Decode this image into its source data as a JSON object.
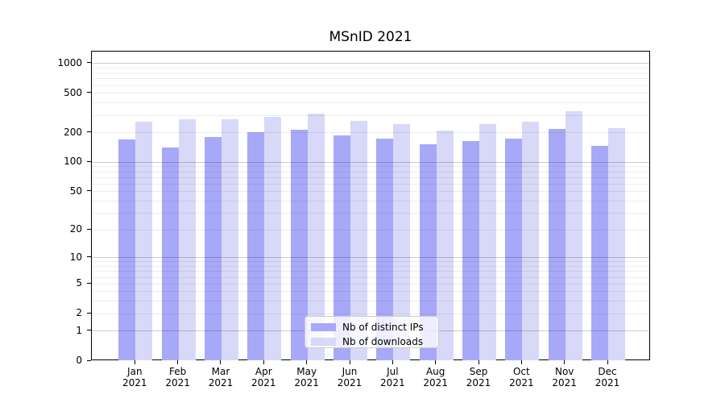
{
  "title": "MSnID 2021",
  "legend": {
    "items": [
      {
        "label": "Nb of distinct IPs",
        "color": "#a8a8f8"
      },
      {
        "label": "Nb of downloads",
        "color": "#d8d8f8"
      }
    ]
  },
  "chart_data": {
    "type": "bar",
    "title": "MSnID 2021",
    "categories": [
      "Jan 2021",
      "Feb 2021",
      "Mar 2021",
      "Apr 2021",
      "May 2021",
      "Jun 2021",
      "Jul 2021",
      "Aug 2021",
      "Sep 2021",
      "Oct 2021",
      "Nov 2021",
      "Dec 2021"
    ],
    "months": [
      "Jan",
      "Feb",
      "Mar",
      "Apr",
      "May",
      "Jun",
      "Jul",
      "Aug",
      "Sep",
      "Oct",
      "Nov",
      "Dec"
    ],
    "year": "2021",
    "series": [
      {
        "name": "Nb of distinct IPs",
        "color": "#a8a8f8",
        "values": [
          172,
          141,
          181,
          201,
          214,
          187,
          175,
          153,
          165,
          174,
          217,
          148
        ]
      },
      {
        "name": "Nb of downloads",
        "color": "#d8d8f8",
        "values": [
          257,
          273,
          274,
          291,
          310,
          265,
          245,
          210,
          245,
          258,
          328,
          224
        ]
      }
    ],
    "xlabel": "",
    "ylabel": "",
    "yscale": "log10(value+1)",
    "y_tick_values": [
      0,
      1,
      2,
      5,
      10,
      20,
      50,
      100,
      200,
      500,
      1000
    ],
    "y_tick_labels": [
      "0",
      "1",
      "2",
      "5",
      "10",
      "20",
      "50",
      "100",
      "200",
      "500",
      "1000"
    ],
    "y_major_gridlines": [
      1,
      10,
      100,
      1000
    ],
    "y_minor_gridlines": [
      2,
      3,
      4,
      5,
      6,
      7,
      8,
      9,
      20,
      30,
      40,
      50,
      60,
      70,
      80,
      90,
      200,
      300,
      400,
      500,
      600,
      700,
      800,
      900
    ],
    "ylim": [
      0,
      1320
    ],
    "grid": true,
    "legend_position": "lower-center"
  }
}
